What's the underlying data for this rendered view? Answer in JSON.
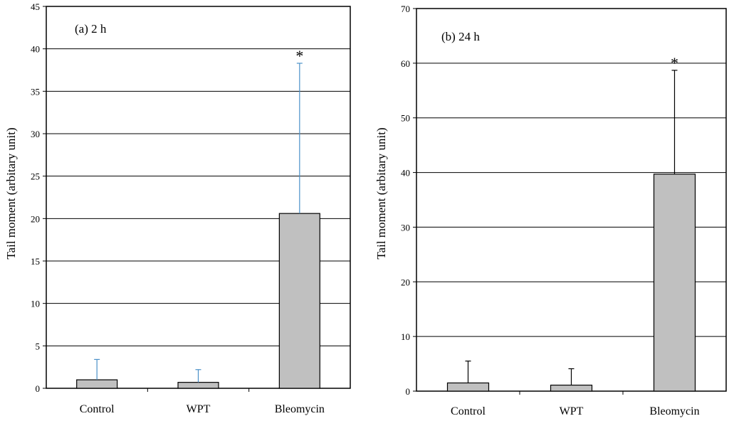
{
  "chart_data": [
    {
      "type": "bar",
      "title": "(a) 2 h",
      "xlabel": "",
      "ylabel": "Tail moment (arbitary unit)",
      "ylim": [
        0,
        45
      ],
      "yticks": [
        0,
        5,
        10,
        15,
        20,
        25,
        30,
        35,
        40,
        45
      ],
      "grid": true,
      "categories": [
        "Control",
        "WPT",
        "Bleomycin"
      ],
      "values": [
        1.0,
        0.7,
        20.6
      ],
      "error": [
        2.4,
        1.5,
        17.7
      ],
      "error_color": "#4a90c8",
      "bar_color": "#c0c0c0",
      "annotations": [
        {
          "category": "Bleomycin",
          "text": "*"
        }
      ]
    },
    {
      "type": "bar",
      "title": "(b) 24 h",
      "xlabel": "",
      "ylabel": "Tail moment (arbitary unit)",
      "ylim": [
        0,
        70
      ],
      "yticks": [
        0,
        10,
        20,
        30,
        40,
        50,
        60,
        70
      ],
      "grid": true,
      "categories": [
        "Control",
        "WPT",
        "Bleomycin"
      ],
      "values": [
        1.5,
        1.1,
        39.7
      ],
      "error": [
        4.0,
        3.0,
        19.0
      ],
      "error_color": "#000000",
      "bar_color": "#c0c0c0",
      "annotations": [
        {
          "category": "Bleomycin",
          "text": "*"
        }
      ]
    }
  ]
}
